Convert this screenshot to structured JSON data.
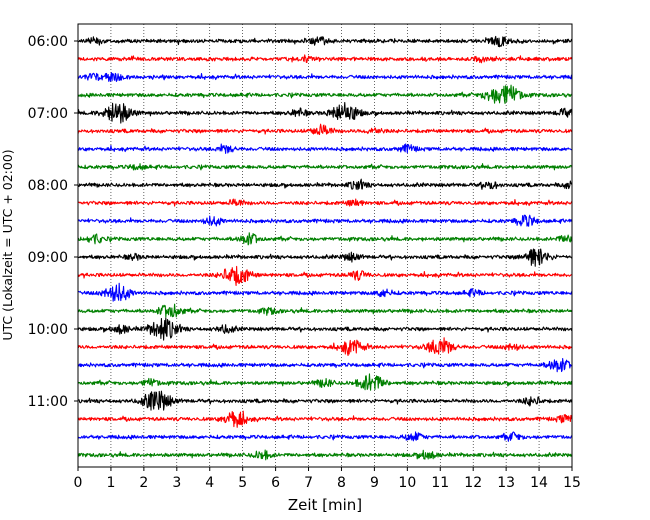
{
  "chart_data": {
    "type": "line",
    "title": "",
    "xlabel": "Zeit  [min]",
    "ylabel": "UTC (Lokalzeit = UTC + 02:00)",
    "xlim": [
      0,
      15
    ],
    "x_ticks": [
      "0",
      "1",
      "2",
      "3",
      "4",
      "5",
      "6",
      "7",
      "8",
      "9",
      "10",
      "11",
      "12",
      "13",
      "14",
      "15"
    ],
    "y_tick_labels": [
      "06:00",
      "07:00",
      "08:00",
      "09:00",
      "10:00",
      "11:00"
    ],
    "vertical_grid": true,
    "trace_minutes": 15,
    "trace_colors": [
      "#000000",
      "#ff0000",
      "#0000ff",
      "#008000"
    ],
    "series": [
      {
        "start": "06:00",
        "color": "#000000",
        "bursts": [
          [
            0.55,
            0.25
          ],
          [
            7.3,
            0.35
          ],
          [
            12.8,
            0.4
          ]
        ]
      },
      {
        "start": "06:15",
        "color": "#ff0000",
        "bursts": [
          [
            6.9,
            0.2
          ],
          [
            12.2,
            0.2
          ]
        ]
      },
      {
        "start": "06:30",
        "color": "#0000ff",
        "bursts": [
          [
            1.1,
            0.35
          ],
          [
            0.5,
            0.25
          ]
        ]
      },
      {
        "start": "06:45",
        "color": "#008000",
        "bursts": [
          [
            13.0,
            0.9
          ],
          [
            12.5,
            0.3
          ]
        ]
      },
      {
        "start": "07:00",
        "color": "#000000",
        "bursts": [
          [
            1.2,
            0.9
          ],
          [
            8.1,
            0.85
          ],
          [
            6.7,
            0.3
          ],
          [
            14.8,
            0.3
          ]
        ]
      },
      {
        "start": "07:15",
        "color": "#ff0000",
        "bursts": [
          [
            7.4,
            0.45
          ],
          [
            9.0,
            0.25
          ]
        ]
      },
      {
        "start": "07:30",
        "color": "#0000ff",
        "bursts": [
          [
            4.5,
            0.3
          ],
          [
            10.0,
            0.3
          ]
        ]
      },
      {
        "start": "07:45",
        "color": "#008000",
        "bursts": [
          [
            1.8,
            0.2
          ]
        ]
      },
      {
        "start": "08:00",
        "color": "#000000",
        "bursts": [
          [
            8.5,
            0.35
          ],
          [
            12.5,
            0.3
          ],
          [
            15.0,
            0.3
          ]
        ]
      },
      {
        "start": "08:15",
        "color": "#ff0000",
        "bursts": [
          [
            4.8,
            0.25
          ],
          [
            8.4,
            0.25
          ]
        ]
      },
      {
        "start": "08:30",
        "color": "#0000ff",
        "bursts": [
          [
            4.1,
            0.35
          ],
          [
            13.6,
            0.45
          ]
        ]
      },
      {
        "start": "08:45",
        "color": "#008000",
        "bursts": [
          [
            0.5,
            0.35
          ],
          [
            5.2,
            0.45
          ],
          [
            14.8,
            0.25
          ]
        ]
      },
      {
        "start": "09:00",
        "color": "#000000",
        "bursts": [
          [
            13.9,
            0.75
          ],
          [
            8.3,
            0.3
          ],
          [
            1.7,
            0.2
          ]
        ]
      },
      {
        "start": "09:15",
        "color": "#ff0000",
        "bursts": [
          [
            4.8,
            0.85
          ],
          [
            8.5,
            0.35
          ]
        ]
      },
      {
        "start": "09:30",
        "color": "#0000ff",
        "bursts": [
          [
            1.2,
            0.75
          ],
          [
            9.3,
            0.3
          ],
          [
            12.0,
            0.25
          ]
        ]
      },
      {
        "start": "09:45",
        "color": "#008000",
        "bursts": [
          [
            2.8,
            0.6
          ],
          [
            5.8,
            0.25
          ]
        ]
      },
      {
        "start": "10:00",
        "color": "#000000",
        "bursts": [
          [
            2.6,
            0.9
          ],
          [
            1.3,
            0.35
          ],
          [
            4.5,
            0.3
          ]
        ]
      },
      {
        "start": "10:15",
        "color": "#ff0000",
        "bursts": [
          [
            8.3,
            0.65
          ],
          [
            11.0,
            0.75
          ],
          [
            13.2,
            0.25
          ]
        ]
      },
      {
        "start": "10:30",
        "color": "#0000ff",
        "bursts": [
          [
            14.6,
            0.55
          ]
        ]
      },
      {
        "start": "10:45",
        "color": "#008000",
        "bursts": [
          [
            8.9,
            0.75
          ],
          [
            7.5,
            0.3
          ],
          [
            2.2,
            0.3
          ]
        ]
      },
      {
        "start": "11:00",
        "color": "#000000",
        "bursts": [
          [
            2.4,
            0.9
          ],
          [
            13.8,
            0.35
          ]
        ]
      },
      {
        "start": "11:15",
        "color": "#ff0000",
        "bursts": [
          [
            4.8,
            0.65
          ],
          [
            14.8,
            0.3
          ]
        ]
      },
      {
        "start": "11:30",
        "color": "#0000ff",
        "bursts": [
          [
            10.2,
            0.35
          ],
          [
            13.2,
            0.3
          ]
        ]
      },
      {
        "start": "11:45",
        "color": "#008000",
        "bursts": [
          [
            5.6,
            0.35
          ],
          [
            10.6,
            0.35
          ]
        ]
      }
    ]
  }
}
